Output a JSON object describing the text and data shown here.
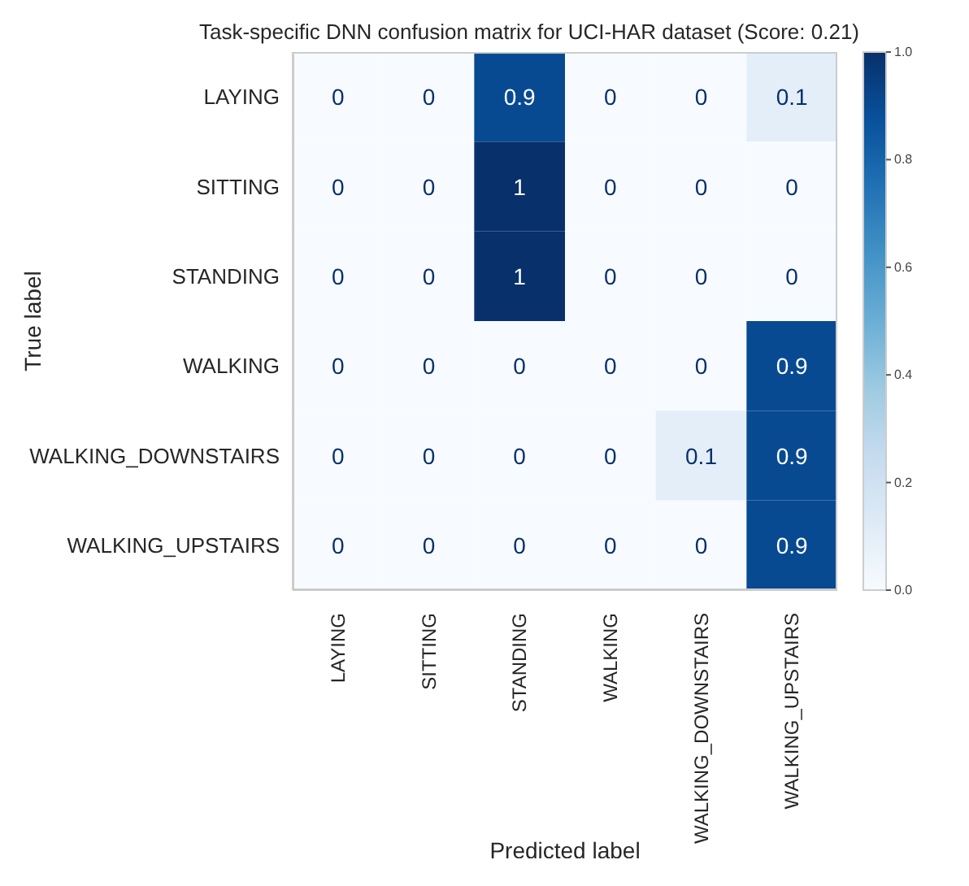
{
  "chart_data": {
    "type": "heatmap",
    "title": "Task-specific DNN confusion matrix for UCI-HAR dataset (Score: 0.21)",
    "xlabel": "Predicted label",
    "ylabel": "True label",
    "categories": [
      "LAYING",
      "SITTING",
      "STANDING",
      "WALKING",
      "WALKING_DOWNSTAIRS",
      "WALKING_UPSTAIRS"
    ],
    "y_categories": [
      "LAYING",
      "SITTING",
      "STANDING",
      "WALKING",
      "WALKING_DOWNSTAIRS",
      "WALKING_UPSTAIRS"
    ],
    "cells": [
      [
        0,
        0,
        0.9,
        0,
        0,
        0.1
      ],
      [
        0,
        0,
        1,
        0,
        0,
        0
      ],
      [
        0,
        0,
        1,
        0,
        0,
        0
      ],
      [
        0,
        0,
        0,
        0,
        0,
        0.9
      ],
      [
        0,
        0,
        0,
        0,
        0.1,
        0.9
      ],
      [
        0,
        0,
        0,
        0,
        0,
        0.9
      ]
    ],
    "data_labels": true,
    "clim": [
      0,
      1
    ],
    "cticks": [
      {
        "value": 0,
        "label": "0.0"
      },
      {
        "value": 0.2,
        "label": "0.2"
      },
      {
        "value": 0.4,
        "label": "0.4"
      },
      {
        "value": 0.6,
        "label": "0.6"
      },
      {
        "value": 0.8,
        "label": "0.8"
      },
      {
        "value": 1,
        "label": "1.0"
      }
    ]
  }
}
